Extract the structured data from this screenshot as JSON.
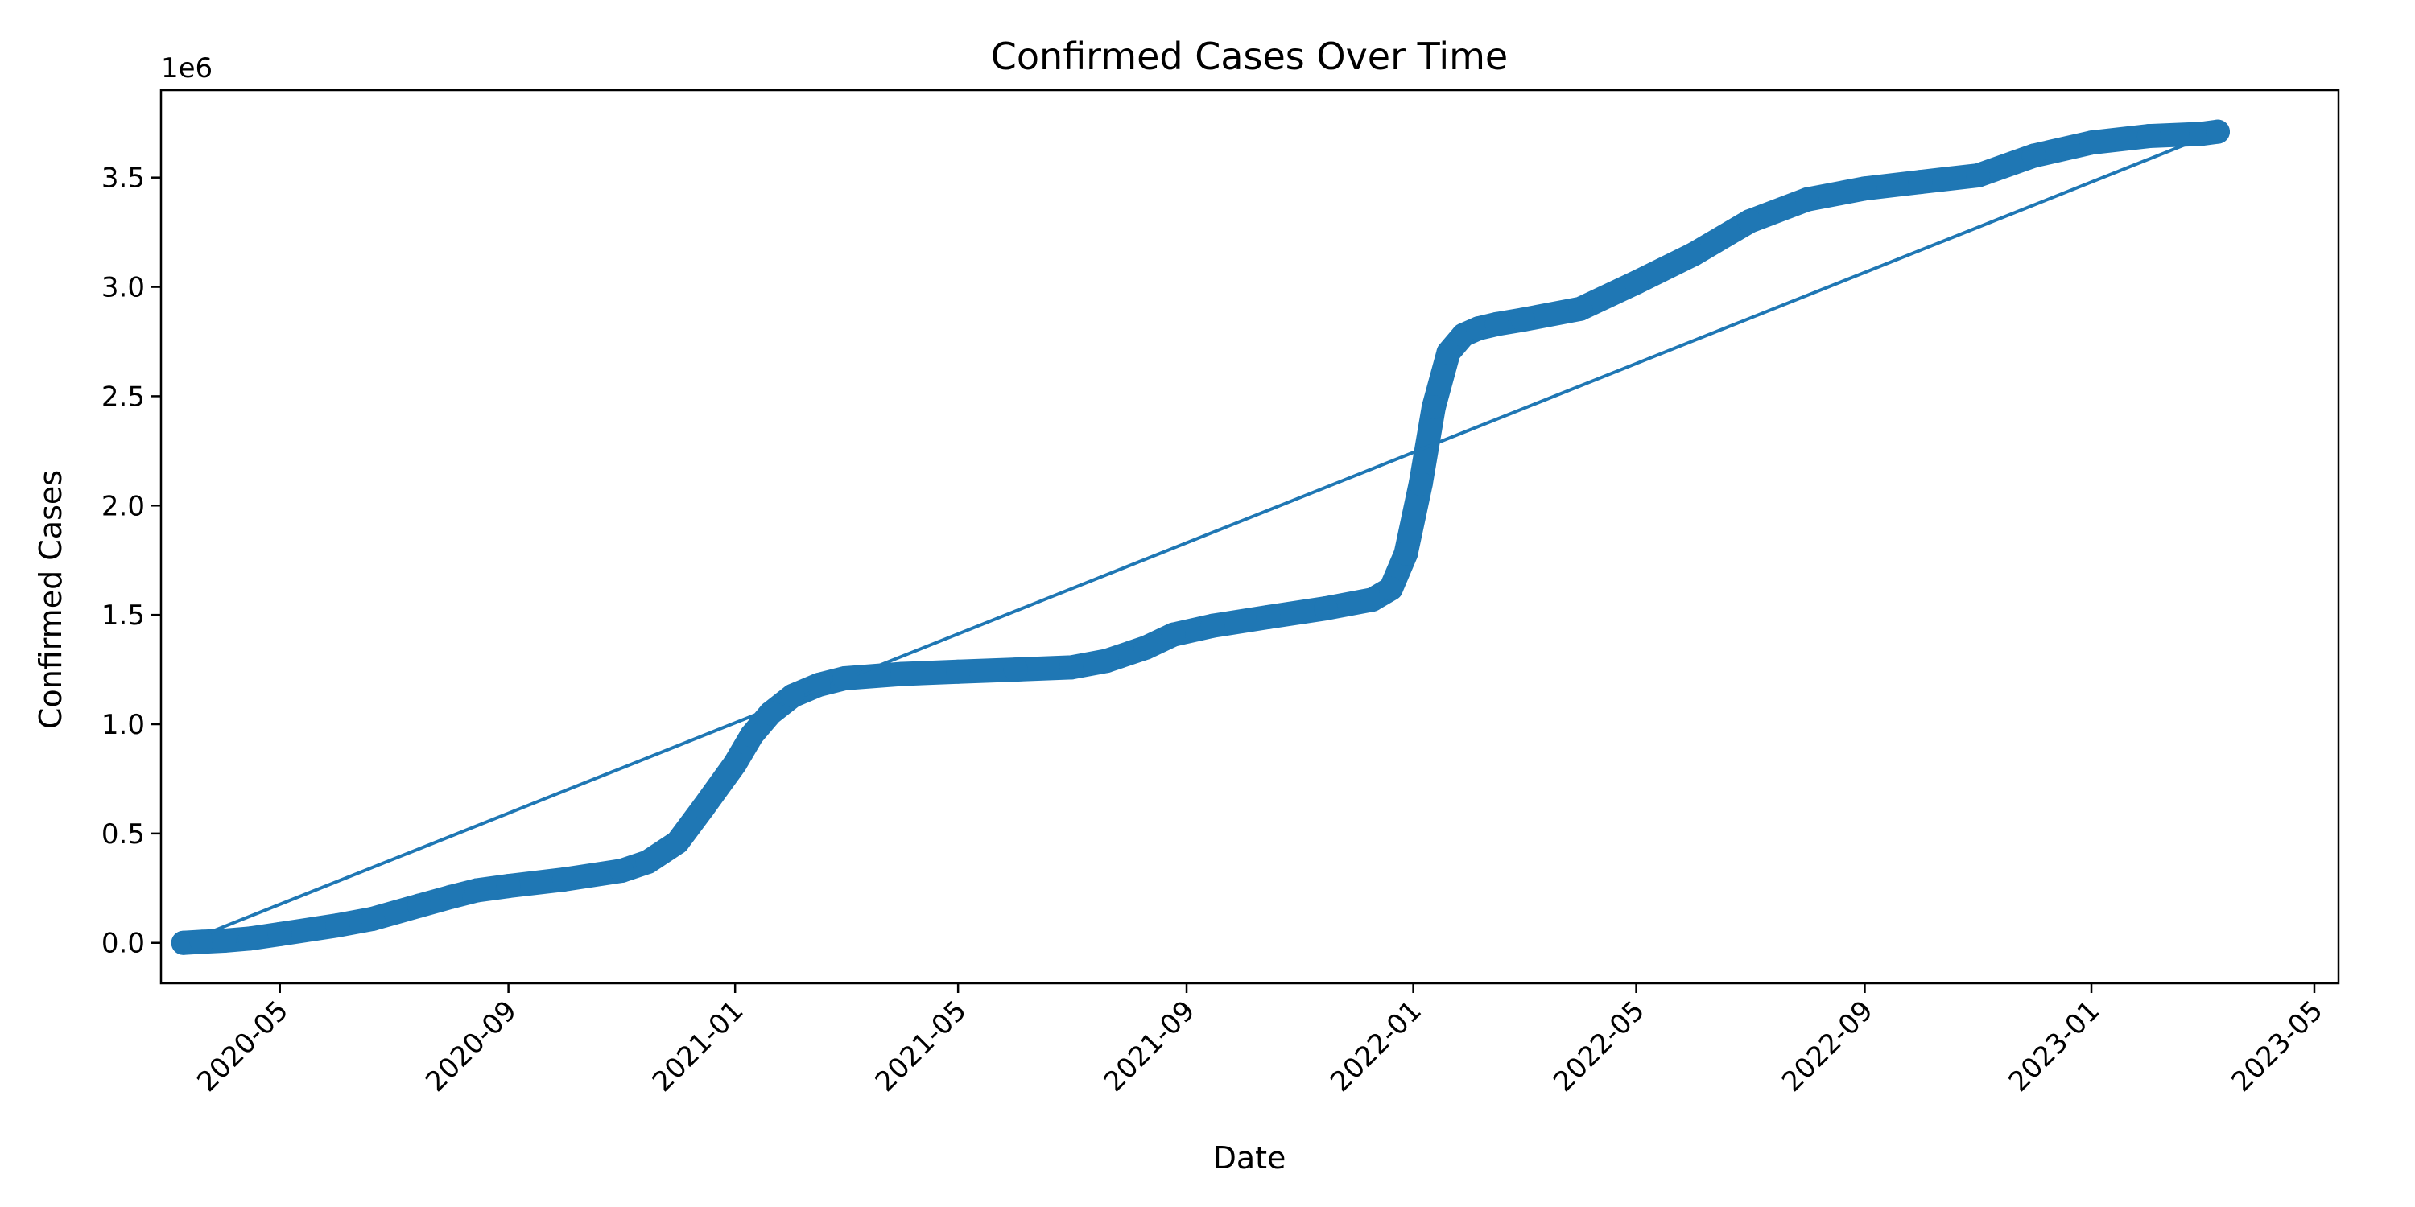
{
  "chart_data": {
    "type": "line",
    "title": "Confirmed Cases Over Time",
    "xlabel": "Date",
    "ylabel": "Confirmed Cases",
    "y_scale_label": "1e6",
    "x_is_date": true,
    "xlim": [
      "2020-02-27",
      "2023-05-14"
    ],
    "ylim": [
      -0.185,
      3.9
    ],
    "y_ticks": [
      0.0,
      0.5,
      1.0,
      1.5,
      2.0,
      2.5,
      3.0,
      3.5
    ],
    "y_tick_labels": [
      "0.0",
      "0.5",
      "1.0",
      "1.5",
      "2.0",
      "2.5",
      "3.0",
      "3.5"
    ],
    "x_ticks": [
      "2020-05-01",
      "2020-09-01",
      "2021-01-01",
      "2021-05-01",
      "2021-09-01",
      "2022-01-01",
      "2022-05-01",
      "2022-09-01",
      "2023-01-01",
      "2023-05-01"
    ],
    "x_tick_labels": [
      "2020-05",
      "2020-09",
      "2021-01",
      "2021-05",
      "2021-09",
      "2022-01",
      "2022-05",
      "2022-09",
      "2023-01",
      "2023-05"
    ],
    "grid": false,
    "legend": "none",
    "series": [
      {
        "style": "line+markers",
        "color": "#1f77b4",
        "x": [
          "2020-03-10",
          "2020-03-20",
          "2020-04-01",
          "2020-04-15",
          "2020-05-01",
          "2020-06-01",
          "2020-06-20",
          "2020-07-15",
          "2020-08-01",
          "2020-08-15",
          "2020-09-01",
          "2020-10-01",
          "2020-11-01",
          "2020-11-15",
          "2020-12-01",
          "2020-12-15",
          "2021-01-01",
          "2021-01-10",
          "2021-01-20",
          "2021-02-01",
          "2021-02-15",
          "2021-03-01",
          "2021-04-01",
          "2021-05-01",
          "2021-06-01",
          "2021-07-01",
          "2021-07-20",
          "2021-08-10",
          "2021-08-25",
          "2021-09-15",
          "2021-10-15",
          "2021-11-15",
          "2021-12-10",
          "2021-12-20",
          "2021-12-28",
          "2022-01-05",
          "2022-01-12",
          "2022-01-20",
          "2022-01-28",
          "2022-02-05",
          "2022-02-15",
          "2022-03-01",
          "2022-04-01",
          "2022-05-01",
          "2022-06-01",
          "2022-07-01",
          "2022-08-01",
          "2022-09-01",
          "2022-10-01",
          "2022-11-01",
          "2022-12-01",
          "2023-01-01",
          "2023-02-01",
          "2023-03-01",
          "2023-03-10"
        ],
        "values": [
          0.0,
          0.005,
          0.01,
          0.02,
          0.04,
          0.08,
          0.11,
          0.17,
          0.21,
          0.24,
          0.26,
          0.29,
          0.33,
          0.37,
          0.46,
          0.62,
          0.82,
          0.95,
          1.05,
          1.13,
          1.18,
          1.21,
          1.23,
          1.24,
          1.25,
          1.26,
          1.29,
          1.35,
          1.41,
          1.45,
          1.49,
          1.53,
          1.57,
          1.62,
          1.78,
          2.1,
          2.45,
          2.7,
          2.78,
          2.81,
          2.83,
          2.85,
          2.9,
          3.02,
          3.15,
          3.3,
          3.4,
          3.45,
          3.48,
          3.51,
          3.6,
          3.66,
          3.69,
          3.7,
          3.71
        ]
      }
    ]
  }
}
